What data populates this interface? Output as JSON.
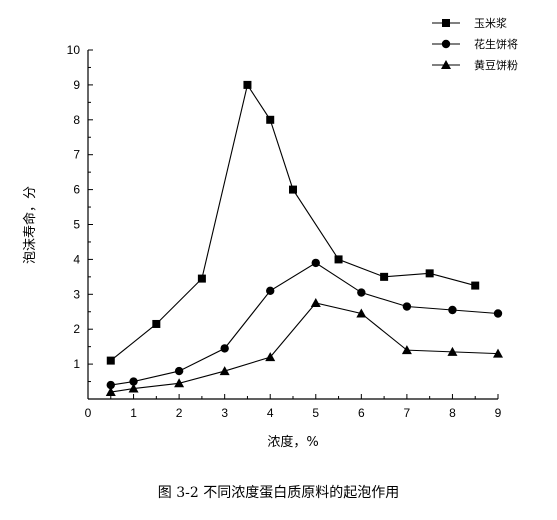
{
  "chart_data": {
    "type": "line",
    "title": "",
    "xlabel": "浓度，%",
    "ylabel": "泡沫寿命，分",
    "xlim": [
      0,
      9
    ],
    "ylim": [
      0,
      10
    ],
    "xticks": [
      "0",
      "1",
      "2",
      "3",
      "4",
      "5",
      "6",
      "7",
      "8",
      "9"
    ],
    "yticks": [
      "1",
      "2",
      "3",
      "4",
      "5",
      "6",
      "7",
      "8",
      "9",
      "10"
    ],
    "grid": false,
    "legend_position": "top-right",
    "series": [
      {
        "name": "玉米浆",
        "marker": "square",
        "x": [
          0.5,
          1.5,
          2.5,
          3.5,
          4.0,
          4.5,
          5.5,
          6.5,
          7.5,
          8.5
        ],
        "y": [
          1.1,
          2.15,
          3.45,
          9.0,
          8.0,
          6.0,
          4.0,
          3.5,
          3.6,
          3.25
        ]
      },
      {
        "name": "花生饼将",
        "marker": "circle",
        "x": [
          0.5,
          1.0,
          2.0,
          3.0,
          4.0,
          5.0,
          6.0,
          7.0,
          8.0,
          9.0
        ],
        "y": [
          0.4,
          0.5,
          0.8,
          1.45,
          3.1,
          3.9,
          3.05,
          2.65,
          2.55,
          2.45
        ]
      },
      {
        "name": "黄豆饼粉",
        "marker": "triangle",
        "x": [
          0.5,
          1.0,
          2.0,
          3.0,
          4.0,
          5.0,
          6.0,
          7.0,
          8.0,
          9.0
        ],
        "y": [
          0.2,
          0.3,
          0.45,
          0.8,
          1.2,
          2.75,
          2.45,
          1.4,
          1.35,
          1.3
        ]
      }
    ]
  },
  "caption": "图 3-2 不同浓度蛋白质原料的起泡作用"
}
